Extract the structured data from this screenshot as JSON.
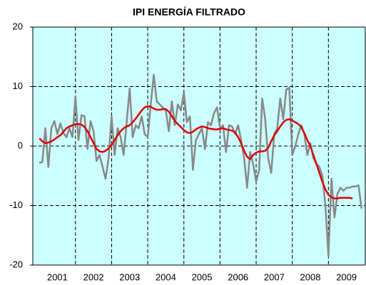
{
  "chart_data": {
    "type": "line",
    "title": "IPI ENERGÍA FILTRADO",
    "x": [
      2001,
      2001.083,
      2001.167,
      2001.25,
      2001.333,
      2001.417,
      2001.5,
      2001.583,
      2001.667,
      2001.75,
      2001.833,
      2001.917,
      2002,
      2002.083,
      2002.167,
      2002.25,
      2002.333,
      2002.417,
      2002.5,
      2002.583,
      2002.667,
      2002.75,
      2002.833,
      2002.917,
      2003,
      2003.083,
      2003.167,
      2003.25,
      2003.333,
      2003.417,
      2003.5,
      2003.583,
      2003.667,
      2003.75,
      2003.833,
      2003.917,
      2004,
      2004.083,
      2004.167,
      2004.25,
      2004.333,
      2004.417,
      2004.5,
      2004.583,
      2004.667,
      2004.75,
      2004.833,
      2004.917,
      2005,
      2005.083,
      2005.167,
      2005.25,
      2005.333,
      2005.417,
      2005.5,
      2005.583,
      2005.667,
      2005.75,
      2005.833,
      2005.917,
      2006,
      2006.083,
      2006.167,
      2006.25,
      2006.333,
      2006.417,
      2006.5,
      2006.583,
      2006.667,
      2006.75,
      2006.833,
      2006.917,
      2007,
      2007.083,
      2007.167,
      2007.25,
      2007.333,
      2007.417,
      2007.5,
      2007.583,
      2007.667,
      2007.75,
      2007.833,
      2007.917,
      2008,
      2008.083,
      2008.167,
      2008.25,
      2008.333,
      2008.417,
      2008.5,
      2008.583,
      2008.667,
      2008.75,
      2008.833,
      2008.917,
      2009,
      2009.083,
      2009.167,
      2009.25,
      2009.333,
      2009.417,
      2009.5,
      2009.583,
      2009.667,
      2009.75,
      2009.833,
      2009.917
    ],
    "series": [
      {
        "color": "#888888",
        "width": 2.5,
        "values": [
          -2.8,
          -2.7,
          3,
          -3.5,
          3,
          4.2,
          2,
          3.8,
          2.2,
          1.5,
          3,
          1.5,
          8.3,
          1,
          5.2,
          5,
          -0.5,
          4.2,
          2.5,
          -2.5,
          -1.5,
          -3.5,
          -5.5,
          -2,
          5,
          -1.5,
          3,
          1.5,
          -1.5,
          4,
          9.7,
          1.5,
          3.5,
          3,
          5,
          2,
          1.5,
          7,
          12,
          7.5,
          7,
          6.5,
          6,
          2.5,
          7.5,
          3.5,
          7,
          6,
          9,
          4,
          5,
          -4,
          1,
          2,
          3,
          -0.5,
          4,
          3.5,
          5.5,
          6.5,
          3,
          3.5,
          -1,
          3.5,
          3.3,
          2,
          3.5,
          1,
          -2,
          -7,
          -1,
          -3,
          -6,
          -4,
          8,
          4.5,
          -2,
          -4.5,
          2,
          3,
          8,
          4.5,
          9.5,
          9.8,
          -1.5,
          0,
          2,
          3.5,
          2,
          -1.5,
          0.5,
          -2,
          -3,
          -3.5,
          -5,
          -10,
          -18.5,
          -5.5,
          -12,
          -8,
          -7,
          -7.5,
          -7,
          -7,
          -6.8,
          -6.8,
          -6.6,
          -10.5
        ]
      },
      {
        "color": "#e00000",
        "width": 2.5,
        "values": [
          1.3,
          0.8,
          0.5,
          0.6,
          0.8,
          1.1,
          1.5,
          1.8,
          2.4,
          3,
          3.3,
          3.5,
          3.7,
          3.7,
          3.6,
          3.2,
          2.5,
          1.5,
          0.5,
          -0.5,
          -0.9,
          -1,
          -0.8,
          -0.4,
          0.2,
          1,
          1.8,
          2.5,
          3,
          3.3,
          3.5,
          4,
          4.6,
          5.3,
          6,
          6.5,
          6.7,
          6.6,
          6.3,
          6.1,
          6.1,
          6.2,
          6.2,
          5.8,
          5,
          4.2,
          3.7,
          3.2,
          2.7,
          2.3,
          2.2,
          2.4,
          2.8,
          3.1,
          3.3,
          3.2,
          3,
          2.9,
          2.8,
          2.8,
          2.9,
          3,
          2.8,
          2.7,
          2.6,
          2.3,
          1.5,
          0.5,
          -0.8,
          -1.8,
          -2.2,
          -1.5,
          -1.1,
          -0.9,
          -0.9,
          -0.8,
          -0.3,
          0.8,
          1.8,
          2.5,
          3.3,
          4,
          4.4,
          4.5,
          4.3,
          4,
          3.7,
          3.2,
          2.2,
          1,
          0,
          -1.5,
          -3,
          -4.5,
          -6,
          -7.3,
          -8.2,
          -8.6,
          -8.8,
          -8.8,
          -8.7,
          -8.7,
          -8.7,
          -8.7,
          -8.8,
          null,
          null,
          null
        ]
      }
    ],
    "xlim": [
      2000.82,
      2010.02
    ],
    "xticks": [
      {
        "value": 2001.5,
        "label": "2001"
      },
      {
        "value": 2002.5,
        "label": "2002"
      },
      {
        "value": 2003.5,
        "label": "2003"
      },
      {
        "value": 2004.5,
        "label": "2004"
      },
      {
        "value": 2005.5,
        "label": "2005"
      },
      {
        "value": 2006.5,
        "label": "2006"
      },
      {
        "value": 2007.5,
        "label": "2007"
      },
      {
        "value": 2008.5,
        "label": "2008"
      },
      {
        "value": 2009.5,
        "label": "2009"
      }
    ],
    "xgrid": [
      2002,
      2003,
      2004,
      2005,
      2006,
      2007,
      2008,
      2009
    ],
    "ylim": [
      -20,
      20
    ],
    "yticks": [
      -20,
      -10,
      0,
      10,
      20
    ],
    "grid": true,
    "background": "#ccffff"
  }
}
